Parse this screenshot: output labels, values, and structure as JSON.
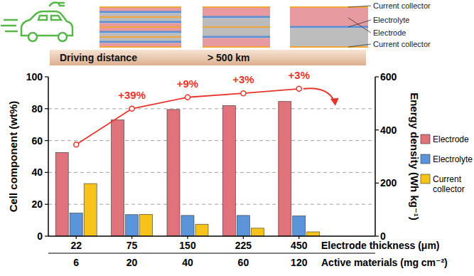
{
  "chart_data": {
    "type": "bar",
    "categories": [
      "22",
      "75",
      "150",
      "225",
      "450"
    ],
    "categories2": [
      "6",
      "20",
      "40",
      "60",
      "120"
    ],
    "x_label": "Electrode thickness (μm)",
    "x2_label": "Active materials (mg cm⁻²)",
    "y_label": "Cell component (wt%)",
    "y2_label": "Energy density (Wh kg⁻¹)",
    "ylim": [
      0,
      100
    ],
    "yticks": [
      0,
      20,
      40,
      60,
      80,
      100
    ],
    "y2lim": [
      0,
      600
    ],
    "y2ticks": [
      0,
      200,
      400,
      600
    ],
    "grid": true,
    "legend": "right",
    "series": [
      {
        "name": "Electrode",
        "color": "#e0727b",
        "values": [
          52.5,
          73,
          79.5,
          82,
          84.5
        ]
      },
      {
        "name": "Electrolyte",
        "color": "#5b94d8",
        "values": [
          14.5,
          13.5,
          13,
          13,
          12.7
        ]
      },
      {
        "name": "Current collector",
        "color": "#f7c31b",
        "values": [
          33,
          13.7,
          7.5,
          5,
          2.7
        ]
      },
      {
        "name": "Energy density",
        "type": "line",
        "axis": "y2",
        "color": "#e8352c",
        "marker": "circle",
        "values": [
          345,
          480,
          523,
          538,
          555
        ]
      }
    ],
    "annotations": [
      "+39%",
      "+9%",
      "+3%",
      "+3%"
    ]
  },
  "header": {
    "layer_labels": [
      "Current collector",
      "Electrolyte",
      "Electrode",
      "Current collector"
    ],
    "banner": [
      "Driving distance",
      "> 500 km"
    ]
  }
}
